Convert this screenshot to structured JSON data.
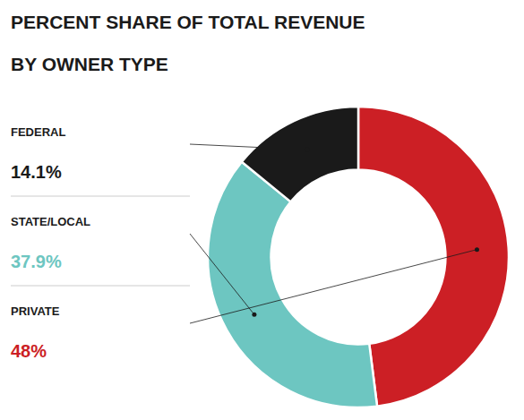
{
  "chart_data": {
    "type": "pie",
    "title": "PERCENT SHARE OF TOTAL REVENUE",
    "subtitle": "BY OWNER TYPE",
    "categories": [
      "PRIVATE",
      "STATE/LOCAL",
      "FEDERAL"
    ],
    "values": [
      48.0,
      37.9,
      14.1
    ],
    "value_labels": [
      "48%",
      "37.9%",
      "14.1%"
    ],
    "colors": [
      "#cc1f25",
      "#6dc6c1",
      "#1a1a1a"
    ]
  }
}
